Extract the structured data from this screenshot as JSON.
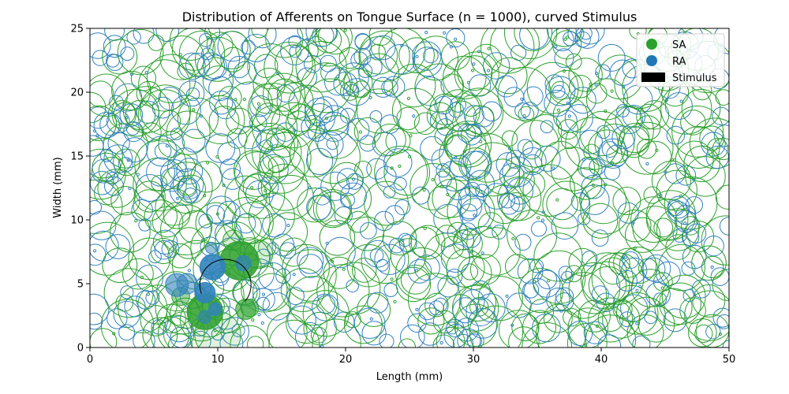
{
  "chart_data": {
    "type": "scatter",
    "title": "Distribution of Afferents on Tongue Surface (n = 1000), curved Stimulus",
    "xlabel": "Length (mm)",
    "ylabel": "Width (mm)",
    "xlim": [
      0,
      50
    ],
    "ylim": [
      0,
      25
    ],
    "xticks": [
      0,
      10,
      20,
      30,
      40,
      50
    ],
    "yticks": [
      0,
      5,
      10,
      15,
      20,
      25
    ],
    "grid": false,
    "legend_position": "top-right",
    "legend": [
      {
        "label": "SA",
        "color": "#2ca02c",
        "marker": "circle"
      },
      {
        "label": "RA",
        "color": "#1f77b4",
        "marker": "circle"
      },
      {
        "label": "Stimulus",
        "color": "#000000",
        "marker": "rectangle"
      }
    ],
    "colors": {
      "SA": "#2ca02c",
      "RA": "#3182bd",
      "stimulus": "#000000"
    },
    "afferent_count": 1000,
    "stimulus": {
      "shape": "curved arc",
      "center": [
        10.6,
        4.9
      ],
      "radius_mm": 2.0
    },
    "activated": [
      {
        "type": "SA",
        "x": 9.0,
        "y": 2.8,
        "r": 1.4,
        "alpha": 0.85
      },
      {
        "type": "SA",
        "x": 11.7,
        "y": 6.8,
        "r": 1.5,
        "alpha": 0.85
      },
      {
        "type": "SA",
        "x": 13.2,
        "y": 7.3,
        "r": 1.1,
        "alpha": 0.2
      },
      {
        "type": "SA",
        "x": 11.2,
        "y": 8.4,
        "r": 0.8,
        "alpha": 0.2
      },
      {
        "type": "SA",
        "x": 10.0,
        "y": 1.0,
        "r": 1.8,
        "alpha": 0.15
      },
      {
        "type": "SA",
        "x": 12.2,
        "y": 3.0,
        "r": 0.8,
        "alpha": 0.6
      },
      {
        "type": "SA",
        "x": 7.1,
        "y": 4.0,
        "r": 0.7,
        "alpha": 0.45
      },
      {
        "type": "SA",
        "x": 12.5,
        "y": 3.1,
        "r": 0.7,
        "alpha": 0.35
      },
      {
        "type": "RA",
        "x": 9.6,
        "y": 6.3,
        "r": 1.0,
        "alpha": 0.9
      },
      {
        "type": "RA",
        "x": 9.0,
        "y": 4.3,
        "r": 0.8,
        "alpha": 0.9
      },
      {
        "type": "RA",
        "x": 6.8,
        "y": 4.9,
        "r": 0.9,
        "alpha": 0.6
      },
      {
        "type": "RA",
        "x": 7.6,
        "y": 5.0,
        "r": 0.8,
        "alpha": 0.5
      },
      {
        "type": "RA",
        "x": 12.0,
        "y": 6.6,
        "r": 0.6,
        "alpha": 0.7
      },
      {
        "type": "RA",
        "x": 9.8,
        "y": 3.0,
        "r": 0.5,
        "alpha": 0.8
      },
      {
        "type": "RA",
        "x": 9.5,
        "y": 7.8,
        "r": 0.45,
        "alpha": 0.5
      },
      {
        "type": "RA",
        "x": 9.0,
        "y": 2.4,
        "r": 0.5,
        "alpha": 0.6
      }
    ]
  }
}
